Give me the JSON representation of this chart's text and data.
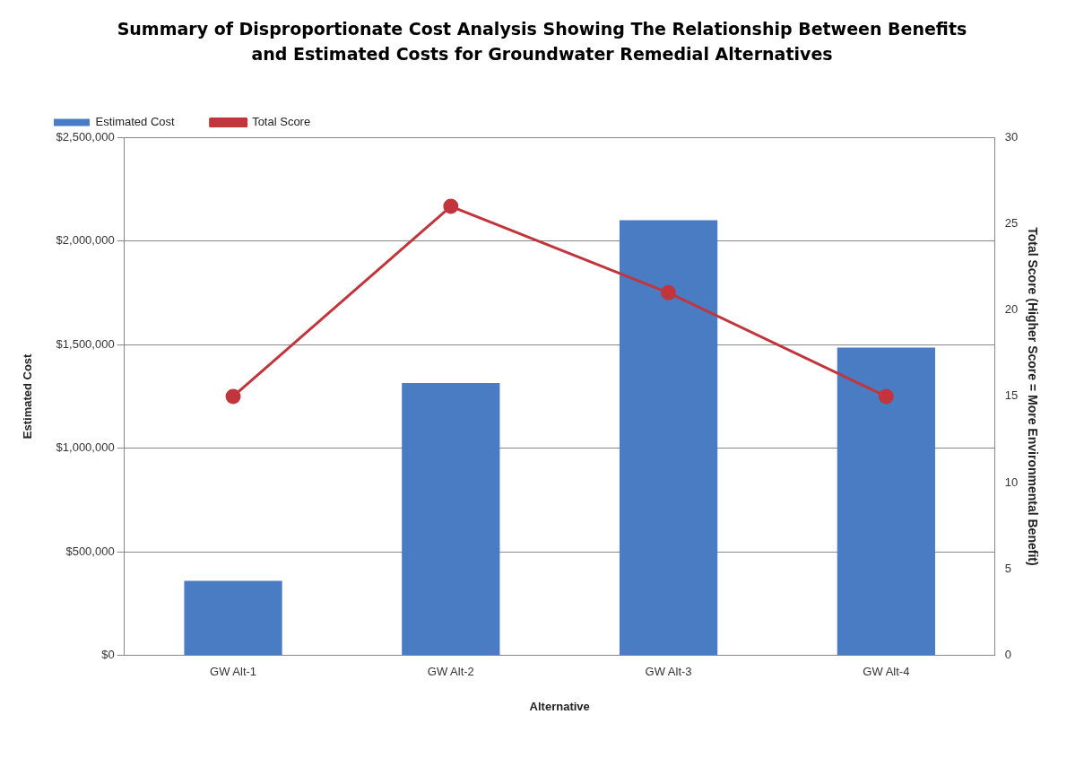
{
  "chart_data": {
    "type": "bar",
    "title": "Summary of Disproportionate Cost Analysis Showing The Relationship Between Benefits and Estimated Costs for Groundwater Remedial Alternatives",
    "xlabel": "Alternative",
    "ylabel": "Estimated Cost",
    "y2label": "Total Score (Higher Score = More Environmental Benefit)",
    "categories": [
      "GW Alt-1",
      "GW Alt-2",
      "GW Alt-3",
      "GW Alt-4"
    ],
    "series": [
      {
        "name": "Estimated Cost",
        "color": "#4a7cc4",
        "values": [
          360000,
          1315000,
          2100000,
          1485000
        ]
      },
      {
        "name": "Total Score",
        "type": "line",
        "axis": "y2",
        "color": "#c0363c",
        "values": [
          15,
          26,
          21,
          15
        ]
      }
    ],
    "ylim": [
      0,
      2500000
    ],
    "yticks": [
      {
        "value": 0,
        "label": "$0"
      },
      {
        "value": 500000,
        "label": "$500,000"
      },
      {
        "value": 1000000,
        "label": "$1,000,000"
      },
      {
        "value": 1500000,
        "label": "$1,500,000"
      },
      {
        "value": 2000000,
        "label": "$2,000,000"
      },
      {
        "value": 2500000,
        "label": "$2,500,000"
      }
    ],
    "y2lim": [
      0,
      30
    ],
    "y2ticks": [
      0,
      5,
      10,
      15,
      20,
      25,
      30
    ],
    "grid": "y",
    "legend": "top left",
    "marker": "circle",
    "line_style": "solid"
  }
}
